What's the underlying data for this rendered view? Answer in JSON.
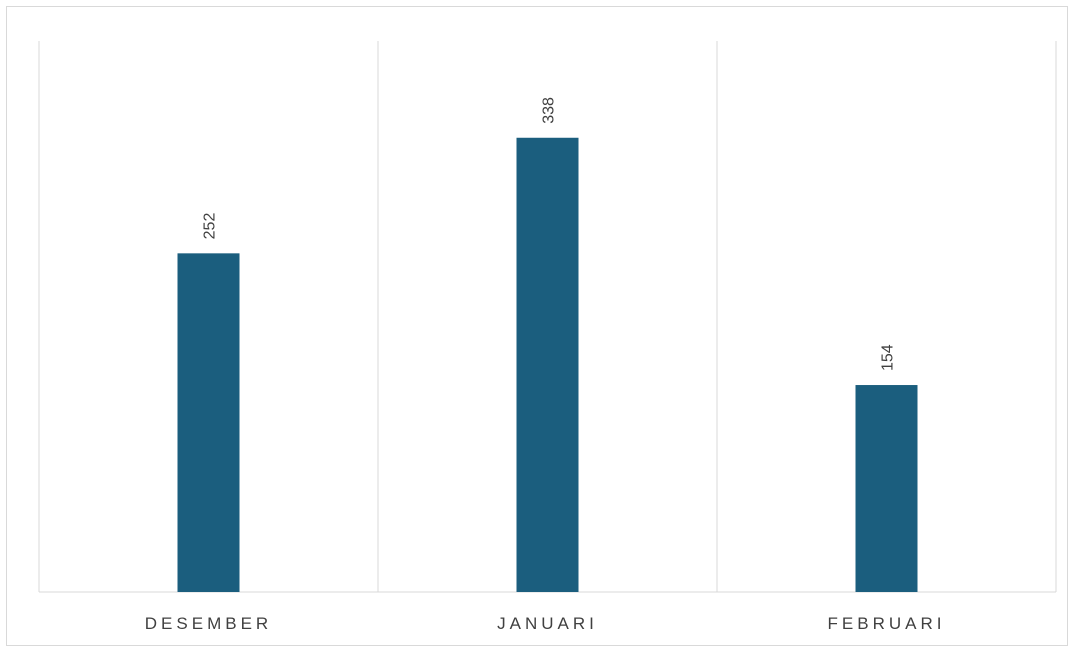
{
  "chart_data": {
    "type": "bar",
    "categories": [
      "DESEMBER",
      "JANUARI",
      "FEBRUARI"
    ],
    "values": [
      252,
      338,
      154
    ],
    "title": "",
    "xlabel": "",
    "ylabel": "",
    "ylim": [
      0,
      410
    ],
    "grid": "vertical category separators",
    "legend": "none",
    "data_labels": "rotated above bars",
    "colors": {
      "bar": "#1b5e7e",
      "gridline": "#d9d9d9",
      "text": "#404040",
      "border": "#d9d9d9"
    }
  }
}
